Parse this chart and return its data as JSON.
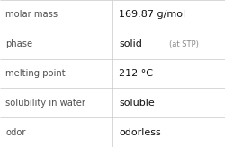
{
  "rows": [
    {
      "label": "molar mass",
      "value": "169.87 g/mol",
      "value2": null
    },
    {
      "label": "phase",
      "value": "solid",
      "value2": "(at STP)"
    },
    {
      "label": "melting point",
      "value": "212 °C",
      "value2": null
    },
    {
      "label": "solubility in water",
      "value": "soluble",
      "value2": null
    },
    {
      "label": "odor",
      "value": "odorless",
      "value2": null
    }
  ],
  "bg_color": "#ffffff",
  "line_color": "#c8c8c8",
  "label_color": "#505050",
  "value_color": "#111111",
  "value2_color": "#888888",
  "label_fontsize": 7.2,
  "value_fontsize": 8.0,
  "value2_fontsize": 6.0,
  "col_split": 0.5
}
